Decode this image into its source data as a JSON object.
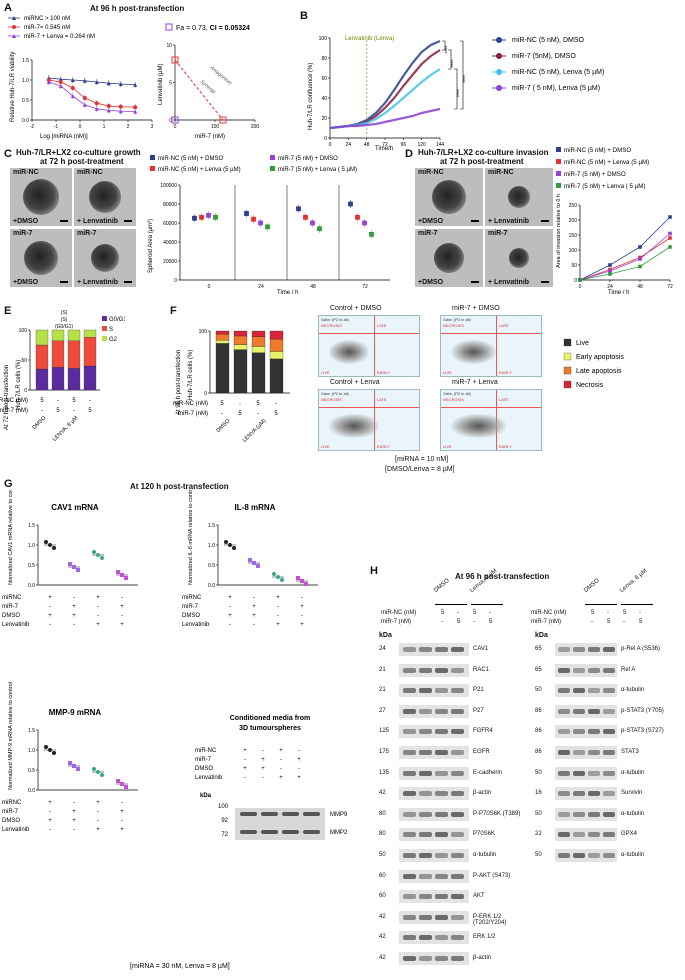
{
  "panels": {
    "A": {
      "label": "A",
      "header": "At 96 h post-transfection",
      "legend": [
        "miRNC > 100 nM",
        "miR-7= 0.545 nM",
        "miR-7 + Lenva = 0.264 nM"
      ],
      "ylabel": "Relative Huh-7/LR viability",
      "xlabel": "Log [miRNA (nM)]",
      "xticks": [
        "-2",
        "-1",
        "0",
        "1",
        "2",
        "3"
      ],
      "yticks": [
        "0.0",
        "0.5",
        "1.0",
        "1.5"
      ],
      "iso_title_a": "Fa = 0.73, ",
      "iso_title_b": "CI = 0.05324",
      "iso_ylabel": "Lenvatinib (µM)",
      "iso_xlabel": "miR-7 (nM)",
      "iso_xticks": [
        "0",
        "100",
        "200"
      ],
      "iso_yticks": [
        "0",
        "5",
        "10"
      ],
      "antagonism": "Antagonism",
      "synergy": "Synergy"
    },
    "B": {
      "label": "B",
      "ylabel": "Huh-7/LR confluence (%)",
      "xlabel": "Time/h",
      "lenva_label": "Lenvatinib (Lenva)",
      "xticks": [
        "0",
        "24",
        "48",
        "72",
        "96",
        "120",
        "144"
      ],
      "yticks": [
        "0",
        "20",
        "40",
        "60",
        "80",
        "100"
      ],
      "legend": [
        "miR-NC (5 nM), DMSO",
        "miR-7 (5nM), DMSO",
        "miR-NC (5 nM), Lenva (5 µM)",
        "miR-7 ( 5 nM), Lenva (5 µM)"
      ],
      "stars": "****"
    },
    "C": {
      "label": "C",
      "header_1": "Huh-7/LR+LX2 co-culture growth",
      "header_2": "at 72 h post-treatment",
      "tiles": [
        "miR-NC",
        "miR-NC",
        "miR-7",
        "miR-7"
      ],
      "tile_sub": [
        "+DMSO",
        "+ Lenvatinib",
        "+DMSO",
        "+ Lenvatinib"
      ],
      "legend": [
        "miR-NC (5 nM) + DMSO",
        "miR-NC (5 nM) + Lenva (5 µM)",
        "miR-7 (5 nM) + DMSO",
        "miR-7 (5 nM) + Lenva ( 5 µM)"
      ],
      "ylabel": "Spheroid Area (µm²)",
      "xlabel": "Time / h",
      "yticks": [
        "0",
        "20000",
        "40000",
        "60000",
        "80000",
        "100000"
      ],
      "xticks": [
        "0",
        "24",
        "48",
        "72"
      ]
    },
    "D": {
      "label": "D",
      "header_1": "Huh-7/LR+LX2 co-culture invasion",
      "header_2": "at 72 h post-treatment",
      "tiles": [
        "miR-NC",
        "miR-NC",
        "miR-7",
        "miR-7"
      ],
      "tile_sub": [
        "+DMSO",
        "+ Lenvatinib",
        "+DMSO",
        "+ Lenvatinib"
      ],
      "legend": [
        "miR-NC (5 nM) + DMSO",
        "miR-NC (5 nM) + Lenva (5 µM)",
        "miR-7 (5 nM) + DMSO",
        "miR-7 (5 nM) + Lenva ( 5 µM)"
      ],
      "ylabel": "Area of invasion relative to 0 h",
      "xlabel": "Time / h",
      "yticks": [
        "0",
        "50",
        "100",
        "150",
        "200",
        "250"
      ],
      "xticks": [
        "0",
        "24",
        "48",
        "72"
      ]
    },
    "E": {
      "label": "E",
      "ylabel_outer": "At 72 h post-transfection",
      "ylabel": "Huh-7/LR cells (%)",
      "legend": [
        "G0/G1",
        "S",
        "G2"
      ],
      "yticks": [
        "0",
        "50",
        "100"
      ],
      "rows": [
        "miR-NC (nM)",
        "miR-7 (nM)"
      ],
      "row1": [
        "5",
        "-",
        "5",
        "-"
      ],
      "row2": [
        "-",
        "5",
        "-",
        "5"
      ],
      "groups": [
        "DMSO",
        "LENVA, 8 µM"
      ],
      "ann": [
        "(S)",
        "(S)",
        "(G0/G1)"
      ]
    },
    "F": {
      "label": "F",
      "ylabel_outer": "At 96 h post-transfection",
      "ylabel": "Huh-7/LR cells (%)",
      "rows": [
        "miR-NC (nM)",
        "miR-7 (nM)"
      ],
      "row1": [
        "5",
        "-",
        "5",
        "-"
      ],
      "row2": [
        "-",
        "5",
        "-",
        "5"
      ],
      "groups": [
        "DMSO",
        "LENVA (µM)"
      ],
      "flow_titles": [
        "Control + DMSO",
        "miR-7 + DMSO",
        "Control + Lenva",
        "miR-7 + Lenva"
      ],
      "flow_axis_x": "FL1-A",
      "flow_axis_y": "FL3-A",
      "flow_gate": "Gate: (P2 in all)",
      "q_necrosis": "NECROSIS",
      "q_late": "LATE",
      "q_live": "LIVE",
      "q_early": "EARLY",
      "legend": [
        "Live",
        "Early apoptosis",
        "Late apoptosis",
        "Necrosis"
      ],
      "note_1": "[miRNA = 10 nM]",
      "note_2": "[DMSO/Lenva = 8 µM]"
    },
    "G": {
      "label": "G",
      "header": "At 120 h post-transfection",
      "cav1": "CAV1 mRNA",
      "il8": "IL-8 mRNA",
      "mmp9": "MMP-9 mRNA",
      "ylabel_cav1": "Normalized CAV1 mRNA relative to control",
      "ylabel_il8": "Normalized IL-8 mRNA relative to control",
      "ylabel_mmp9": "Normalized MMP-9 mRNA relative to control",
      "yticks": [
        "0.0",
        "0.5",
        "1.0",
        "1.5"
      ],
      "rows": [
        "miRNC",
        "miR-7",
        "DMSO",
        "Lenvatinib"
      ],
      "signs": [
        [
          "+",
          "-",
          "+",
          "-"
        ],
        [
          "-",
          "+",
          "-",
          "+"
        ],
        [
          "+",
          "+",
          "-",
          "-"
        ],
        [
          "-",
          "-",
          "+",
          "+"
        ]
      ],
      "cm_title_1": "Conditioned media from",
      "cm_title_2": "3D tumourspheres",
      "cm_rows": [
        "miR-NC",
        "miR-7",
        "DMSO",
        "Lenvatinib"
      ],
      "kda": "kDa",
      "cm_markers": [
        "100",
        "92",
        "72"
      ],
      "cm_bands": [
        "MMP9",
        "MMP2"
      ],
      "note": "[miRNA = 30 nM, Lenva = 8 µM]"
    },
    "H": {
      "label": "H",
      "header": "At 96 h post-transfection",
      "groups": [
        "DMSO",
        "Lenva, 8 µM"
      ],
      "rows": [
        "miR-NC (nM)",
        "miR-7 (nM)"
      ],
      "row1": [
        "5",
        "-",
        "5",
        "-"
      ],
      "row2": [
        "-",
        "5",
        "-",
        "5"
      ],
      "kda": "kDa",
      "left": [
        {
          "kda": "24",
          "name": "CAV1"
        },
        {
          "kda": "21",
          "name": "RAC1"
        },
        {
          "kda": "21",
          "name": "P21"
        },
        {
          "kda": "27",
          "name": "P27"
        },
        {
          "kda": "125",
          "name": "FGFR4"
        },
        {
          "kda": "175",
          "name": "EGFR"
        },
        {
          "kda": "135",
          "name": "E-cadherin"
        },
        {
          "kda": "42",
          "name": "β-actin"
        },
        {
          "kda": "80",
          "name": "P-P70S6K (T389)"
        },
        {
          "kda": "80",
          "name": "P70S6K"
        },
        {
          "kda": "50",
          "name": "α-tubulin"
        },
        {
          "kda": "60",
          "name": "P-AKT (S473)"
        },
        {
          "kda": "60",
          "name": "AKT"
        },
        {
          "kda": "42",
          "name": "P-ERK 1/2 (T202/Y204)"
        },
        {
          "kda": "42",
          "name": "ERK 1/2"
        },
        {
          "kda": "42",
          "name": "β-actin"
        }
      ],
      "right": [
        {
          "kda": "65",
          "name": "p-Rel A (S536)"
        },
        {
          "kda": "65",
          "name": "Rel A"
        },
        {
          "kda": "50",
          "name": "α-tubulin"
        },
        {
          "kda": "86",
          "name": "p-STAT3 (Y705)"
        },
        {
          "kda": "86",
          "name": "p-STAT3 (S727)"
        },
        {
          "kda": "86",
          "name": "STAT3"
        },
        {
          "kda": "50",
          "name": "α-tubulin"
        },
        {
          "kda": "16",
          "name": "Survivin"
        },
        {
          "kda": "50",
          "name": "α-tubulin"
        },
        {
          "kda": "22",
          "name": "GPX4"
        },
        {
          "kda": "50",
          "name": "α-tubulin"
        }
      ]
    }
  },
  "chart_data": [
    {
      "type": "line",
      "panel": "A",
      "title": "",
      "xlabel": "Log [miRNA (nM)]",
      "ylabel": "Relative Huh-7/LR viability",
      "x": [
        -1.3,
        -0.8,
        -0.3,
        0.2,
        0.7,
        1.2,
        1.7,
        2.3
      ],
      "series": [
        {
          "name": "miRNC > 100 nM",
          "values": [
            1.05,
            1.02,
            1.0,
            0.98,
            0.95,
            0.92,
            0.9,
            0.88
          ]
        },
        {
          "name": "miR-7= 0.545 nM",
          "values": [
            1.0,
            0.95,
            0.8,
            0.55,
            0.42,
            0.35,
            0.33,
            0.32
          ]
        },
        {
          "name": "miR-7 + Lenva = 0.264 nM",
          "values": [
            0.95,
            0.85,
            0.6,
            0.38,
            0.28,
            0.24,
            0.22,
            0.21
          ]
        }
      ],
      "ylim": [
        0,
        1.5
      ]
    },
    {
      "type": "line",
      "panel": "B",
      "xlabel": "Time/h",
      "ylabel": "Huh-7/LR confluence (%)",
      "x": [
        0,
        12,
        24,
        36,
        48,
        60,
        72,
        84,
        96,
        108,
        120,
        132,
        144
      ],
      "series": [
        {
          "name": "miR-NC (5 nM), DMSO",
          "values": [
            10,
            11,
            12,
            14,
            18,
            25,
            35,
            48,
            62,
            75,
            86,
            93,
            97
          ]
        },
        {
          "name": "miR-7 (5nM), DMSO",
          "values": [
            10,
            11,
            12,
            13,
            16,
            22,
            30,
            40,
            52,
            63,
            74,
            82,
            88
          ]
        },
        {
          "name": "miR-NC (5 nM), Lenva (5 µM)",
          "values": [
            10,
            11,
            12,
            13,
            15,
            19,
            25,
            32,
            40,
            48,
            56,
            63,
            69
          ]
        },
        {
          "name": "miR-7 ( 5 nM), Lenva (5 µM)",
          "values": [
            10,
            11,
            12,
            12,
            13,
            14,
            16,
            18,
            20,
            22,
            25,
            27,
            29
          ]
        }
      ],
      "ylim": [
        0,
        100
      ]
    },
    {
      "type": "scatter",
      "panel": "C",
      "xlabel": "Time / h",
      "ylabel": "Spheroid Area (µm²)",
      "categories": [
        "0",
        "24",
        "48",
        "72"
      ],
      "series": [
        {
          "name": "miR-NC (5 nM) + DMSO",
          "values": [
            65000,
            70000,
            75000,
            80000
          ]
        },
        {
          "name": "miR-NC (5 nM) + Lenva (5 µM)",
          "values": [
            66000,
            64000,
            66000,
            66000
          ]
        },
        {
          "name": "miR-7 (5 nM) + DMSO",
          "values": [
            68000,
            60000,
            60000,
            60000
          ]
        },
        {
          "name": "miR-7 (5 nM) + Lenva ( 5 µM)",
          "values": [
            66000,
            56000,
            54000,
            48000
          ]
        }
      ],
      "ylim": [
        0,
        100000
      ]
    },
    {
      "type": "line",
      "panel": "D",
      "xlabel": "Time / h",
      "ylabel": "Area of invasion relative to 0 h",
      "x": [
        0,
        24,
        48,
        72
      ],
      "series": [
        {
          "name": "miR-NC (5 nM) + DMSO",
          "values": [
            0,
            50,
            110,
            210
          ]
        },
        {
          "name": "miR-NC (5 nM) + Lenva (5 µM)",
          "values": [
            0,
            35,
            75,
            140
          ]
        },
        {
          "name": "miR-7 (5 nM) + DMSO",
          "values": [
            0,
            30,
            70,
            155
          ]
        },
        {
          "name": "miR-7 (5 nM) + Lenva ( 5 µM)",
          "values": [
            0,
            20,
            45,
            110
          ]
        }
      ],
      "ylim": [
        0,
        250
      ]
    },
    {
      "type": "bar",
      "panel": "E",
      "ylabel": "Huh-7/LR cells (%)",
      "categories": [
        "1",
        "2",
        "3",
        "4"
      ],
      "series": [
        {
          "name": "G0/G1",
          "values": [
            35,
            38,
            36,
            40
          ]
        },
        {
          "name": "S",
          "values": [
            40,
            44,
            46,
            48
          ]
        },
        {
          "name": "G2",
          "values": [
            25,
            18,
            18,
            12
          ]
        }
      ],
      "ylim": [
        0,
        100
      ]
    },
    {
      "type": "bar",
      "panel": "F",
      "ylabel": "Huh-7/LR cells (%)",
      "categories": [
        "1",
        "2",
        "3",
        "4"
      ],
      "series": [
        {
          "name": "Live",
          "values": [
            80,
            70,
            65,
            55
          ]
        },
        {
          "name": "Early apoptosis",
          "values": [
            5,
            8,
            10,
            12
          ]
        },
        {
          "name": "Late apoptosis",
          "values": [
            10,
            14,
            16,
            20
          ]
        },
        {
          "name": "Necrosis",
          "values": [
            5,
            8,
            9,
            13
          ]
        }
      ],
      "ylim": [
        0,
        100
      ]
    },
    {
      "type": "scatter",
      "panel": "G-CAV1",
      "categories": [
        "1",
        "2",
        "3",
        "4"
      ],
      "values": [
        1.0,
        0.45,
        0.75,
        0.25
      ],
      "ylim": [
        0,
        1.5
      ]
    },
    {
      "type": "scatter",
      "panel": "G-IL8",
      "categories": [
        "1",
        "2",
        "3",
        "4"
      ],
      "values": [
        1.0,
        0.55,
        0.2,
        0.1
      ],
      "ylim": [
        0,
        1.5
      ]
    },
    {
      "type": "scatter",
      "panel": "G-MMP9",
      "categories": [
        "1",
        "2",
        "3",
        "4"
      ],
      "values": [
        1.0,
        0.6,
        0.45,
        0.15
      ],
      "ylim": [
        0,
        1.5
      ]
    }
  ],
  "colors": {
    "navy": "#2c3e8c",
    "red": "#e53030",
    "purple": "#9b3fd6",
    "green": "#2e9e3a",
    "cyan": "#3fc1e8",
    "maroon": "#8b1a3a",
    "violet": "#8a3fd6"
  }
}
